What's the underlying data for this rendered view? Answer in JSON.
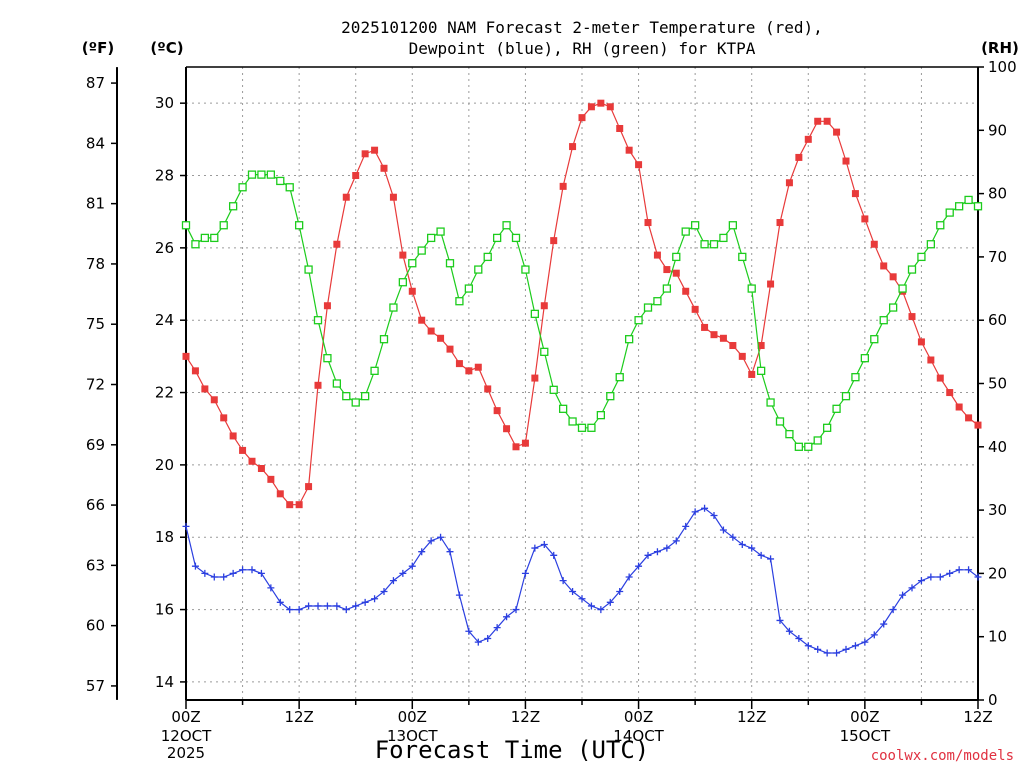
{
  "chart_data": {
    "type": "line",
    "title_line1": "2025101200 NAM Forecast 2-meter Temperature (red),",
    "title_line2": "Dewpoint (blue), RH (green) for KTPA",
    "xlabel": "Forecast Time (UTC)",
    "source": "coolwx.com/models",
    "units": {
      "left_outer": "(ºF)",
      "left_inner": "(ºC)",
      "right": "(RH)"
    },
    "x_range": [
      0,
      84
    ],
    "x_step_hours": 1,
    "x_ticks": [
      {
        "hour": 0,
        "label": "00Z",
        "sub1": "12OCT",
        "sub2": "2025"
      },
      {
        "hour": 12,
        "label": "12Z",
        "sub1": "",
        "sub2": ""
      },
      {
        "hour": 24,
        "label": "00Z",
        "sub1": "13OCT",
        "sub2": ""
      },
      {
        "hour": 36,
        "label": "12Z",
        "sub1": "",
        "sub2": ""
      },
      {
        "hour": 48,
        "label": "00Z",
        "sub1": "14OCT",
        "sub2": ""
      },
      {
        "hour": 60,
        "label": "12Z",
        "sub1": "",
        "sub2": ""
      },
      {
        "hour": 72,
        "label": "00Z",
        "sub1": "15OCT",
        "sub2": ""
      },
      {
        "hour": 84,
        "label": "12Z",
        "sub1": "",
        "sub2": ""
      }
    ],
    "celsius_range": [
      13.5,
      31.0
    ],
    "celsius_ticks": [
      "14",
      "16",
      "18",
      "20",
      "22",
      "24",
      "26",
      "28",
      "30"
    ],
    "fahrenheit_ticks": [
      "57",
      "60",
      "63",
      "66",
      "69",
      "72",
      "75",
      "78",
      "81",
      "84",
      "87"
    ],
    "rh_range": [
      0,
      100
    ],
    "rh_ticks": [
      "0",
      "10",
      "20",
      "30",
      "40",
      "50",
      "60",
      "70",
      "80",
      "90",
      "100"
    ],
    "series": [
      {
        "name": "Temperature",
        "unit": "C",
        "color": "#e83a3a",
        "marker": "square-filled",
        "values": [
          23.0,
          22.6,
          22.1,
          21.8,
          21.3,
          20.8,
          20.4,
          20.1,
          19.9,
          19.6,
          19.2,
          18.9,
          18.9,
          19.4,
          22.2,
          24.4,
          26.1,
          27.4,
          28.0,
          28.6,
          28.7,
          28.2,
          27.4,
          25.8,
          24.8,
          24.0,
          23.7,
          23.5,
          23.2,
          22.8,
          22.6,
          22.7,
          22.1,
          21.5,
          21.0,
          20.5,
          20.6,
          22.4,
          24.4,
          26.2,
          27.7,
          28.8,
          29.6,
          29.9,
          30.0,
          29.9,
          29.3,
          28.7,
          28.3,
          26.7,
          25.8,
          25.4,
          25.3,
          24.8,
          24.3,
          23.8,
          23.6,
          23.5,
          23.3,
          23.0,
          22.5,
          23.3,
          25.0,
          26.7,
          27.8,
          28.5,
          29.0,
          29.5,
          29.5,
          29.2,
          28.4,
          27.5,
          26.8,
          26.1,
          25.5,
          25.2,
          24.8,
          24.1,
          23.4,
          22.9,
          22.4,
          22.0,
          21.6,
          21.3,
          21.1
        ]
      },
      {
        "name": "Dewpoint",
        "unit": "C",
        "color": "#2b3fe0",
        "marker": "plus",
        "values": [
          18.3,
          17.2,
          17.0,
          16.9,
          16.9,
          17.0,
          17.1,
          17.1,
          17.0,
          16.6,
          16.2,
          16.0,
          16.0,
          16.1,
          16.1,
          16.1,
          16.1,
          16.0,
          16.1,
          16.2,
          16.3,
          16.5,
          16.8,
          17.0,
          17.2,
          17.6,
          17.9,
          18.0,
          17.6,
          16.4,
          15.4,
          15.1,
          15.2,
          15.5,
          15.8,
          16.0,
          17.0,
          17.7,
          17.8,
          17.5,
          16.8,
          16.5,
          16.3,
          16.1,
          16.0,
          16.2,
          16.5,
          16.9,
          17.2,
          17.5,
          17.6,
          17.7,
          17.9,
          18.3,
          18.7,
          18.8,
          18.6,
          18.2,
          18.0,
          17.8,
          17.7,
          17.5,
          17.4,
          15.7,
          15.4,
          15.2,
          15.0,
          14.9,
          14.8,
          14.8,
          14.9,
          15.0,
          15.1,
          15.3,
          15.6,
          16.0,
          16.4,
          16.6,
          16.8,
          16.9,
          16.9,
          17.0,
          17.1,
          17.1,
          16.9
        ]
      },
      {
        "name": "Relative Humidity",
        "unit": "%",
        "color": "#1ccc1c",
        "marker": "square-open",
        "values": [
          75,
          72,
          73,
          73,
          75,
          78,
          81,
          83,
          83,
          83,
          82,
          81,
          75,
          68,
          60,
          54,
          50,
          48,
          47,
          48,
          52,
          57,
          62,
          66,
          69,
          71,
          73,
          74,
          69,
          63,
          65,
          68,
          70,
          73,
          75,
          73,
          68,
          61,
          55,
          49,
          46,
          44,
          43,
          43,
          45,
          48,
          51,
          57,
          60,
          62,
          63,
          65,
          70,
          74,
          75,
          72,
          72,
          73,
          75,
          70,
          65,
          52,
          47,
          44,
          42,
          40,
          40,
          41,
          43,
          46,
          48,
          51,
          54,
          57,
          60,
          62,
          65,
          68,
          70,
          72,
          75,
          77,
          78,
          79,
          78
        ]
      }
    ]
  }
}
